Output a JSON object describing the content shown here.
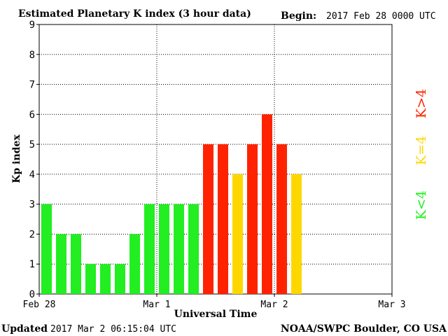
{
  "header": {
    "title": "Estimated Planetary K index (3 hour data)",
    "begin_label": "Begin:",
    "begin_value": "2017 Feb 28 0000 UTC"
  },
  "footer": {
    "updated_label": "Updated",
    "updated_value": "2017 Mar  2 06:15:04 UTC",
    "credit": "NOAA/SWPC Boulder, CO USA"
  },
  "legend": {
    "below": "K<4",
    "equal": "K=4",
    "above": "K>4"
  },
  "colors": {
    "below": "#22ee22",
    "equal": "#ffd700",
    "above": "#ff2200"
  },
  "chart_data": {
    "type": "bar",
    "title": "Estimated Planetary K index (3 hour data)",
    "xlabel": "Universal Time",
    "ylabel": "Kp index",
    "ylim": [
      0,
      9
    ],
    "yticks": [
      0,
      1,
      2,
      3,
      4,
      5,
      6,
      7,
      8,
      9
    ],
    "x_ticks": [
      "Feb 28",
      "Mar 1",
      "Mar 2",
      "Mar 3"
    ],
    "x_range_days": 3,
    "interval_hours": 3,
    "grid": true,
    "values": [
      3,
      2,
      2,
      1,
      1,
      1,
      2,
      3,
      3,
      3,
      3,
      5,
      5,
      4,
      5,
      6,
      5,
      4
    ]
  }
}
